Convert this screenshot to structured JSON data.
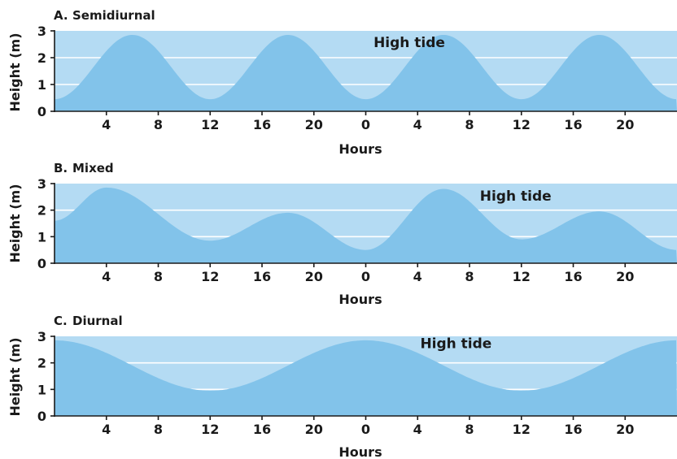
{
  "chart_data": [
    {
      "type": "area",
      "letter": "A.",
      "title": "Semidiurnal",
      "xlabel": "Hours",
      "ylabel": "Height (m)",
      "ylim": [
        0,
        3
      ],
      "yticks": [
        "0",
        "1",
        "2",
        "3"
      ],
      "xticks": [
        {
          "x": 4,
          "label": "4"
        },
        {
          "x": 8,
          "label": "8"
        },
        {
          "x": 12,
          "label": "12"
        },
        {
          "x": 16,
          "label": "16"
        },
        {
          "x": 20,
          "label": "20"
        },
        {
          "x": 24,
          "label": "0"
        },
        {
          "x": 28,
          "label": "4"
        },
        {
          "x": 32,
          "label": "8"
        },
        {
          "x": 36,
          "label": "12"
        },
        {
          "x": 40,
          "label": "16"
        },
        {
          "x": 44,
          "label": "20"
        }
      ],
      "xlim": [
        0,
        48
      ],
      "grid": true,
      "annotation": {
        "text": "High tide",
        "x": 24.6,
        "y": 2.4
      },
      "x": [
        0,
        6,
        12,
        18,
        24,
        30,
        36,
        42,
        48
      ],
      "y": [
        0.45,
        2.85,
        0.45,
        2.85,
        0.45,
        2.85,
        0.45,
        2.85,
        0.45
      ]
    },
    {
      "type": "area",
      "letter": "B.",
      "title": "Mixed",
      "xlabel": "Hours",
      "ylabel": "Height (m)",
      "ylim": [
        0,
        3
      ],
      "yticks": [
        "0",
        "1",
        "2",
        "3"
      ],
      "xticks": [
        {
          "x": 4,
          "label": "4"
        },
        {
          "x": 8,
          "label": "8"
        },
        {
          "x": 12,
          "label": "12"
        },
        {
          "x": 16,
          "label": "16"
        },
        {
          "x": 20,
          "label": "20"
        },
        {
          "x": 24,
          "label": "0"
        },
        {
          "x": 28,
          "label": "4"
        },
        {
          "x": 32,
          "label": "8"
        },
        {
          "x": 36,
          "label": "12"
        },
        {
          "x": 40,
          "label": "16"
        },
        {
          "x": 44,
          "label": "20"
        }
      ],
      "xlim": [
        0,
        48
      ],
      "grid": true,
      "annotation": {
        "text": "High tide",
        "x": 32.8,
        "y": 2.35
      },
      "x": [
        0,
        4,
        12,
        18,
        24,
        30,
        36,
        42,
        48
      ],
      "y": [
        1.6,
        2.85,
        0.85,
        1.9,
        0.5,
        2.8,
        0.9,
        1.95,
        0.5
      ]
    },
    {
      "type": "area",
      "letter": "C.",
      "title": "Diurnal",
      "xlabel": "Hours",
      "ylabel": "Height (m)",
      "ylim": [
        0,
        3
      ],
      "yticks": [
        "0",
        "1",
        "2",
        "3"
      ],
      "xticks": [
        {
          "x": 4,
          "label": "4"
        },
        {
          "x": 8,
          "label": "8"
        },
        {
          "x": 12,
          "label": "12"
        },
        {
          "x": 16,
          "label": "16"
        },
        {
          "x": 20,
          "label": "20"
        },
        {
          "x": 24,
          "label": "0"
        },
        {
          "x": 28,
          "label": "4"
        },
        {
          "x": 32,
          "label": "8"
        },
        {
          "x": 36,
          "label": "12"
        },
        {
          "x": 40,
          "label": "16"
        },
        {
          "x": 44,
          "label": "20"
        }
      ],
      "xlim": [
        0,
        48
      ],
      "grid": true,
      "annotation": {
        "text": "High tide",
        "x": 28.2,
        "y": 2.55
      },
      "x": [
        0,
        12,
        24,
        36,
        48
      ],
      "y": [
        2.85,
        0.95,
        2.85,
        0.95,
        2.85
      ]
    }
  ],
  "colors": {
    "plot_background": "#b4dbf3",
    "tide_fill": "#82c3ea",
    "gridline": "#ffffff",
    "axis": "#1a1a1a"
  }
}
